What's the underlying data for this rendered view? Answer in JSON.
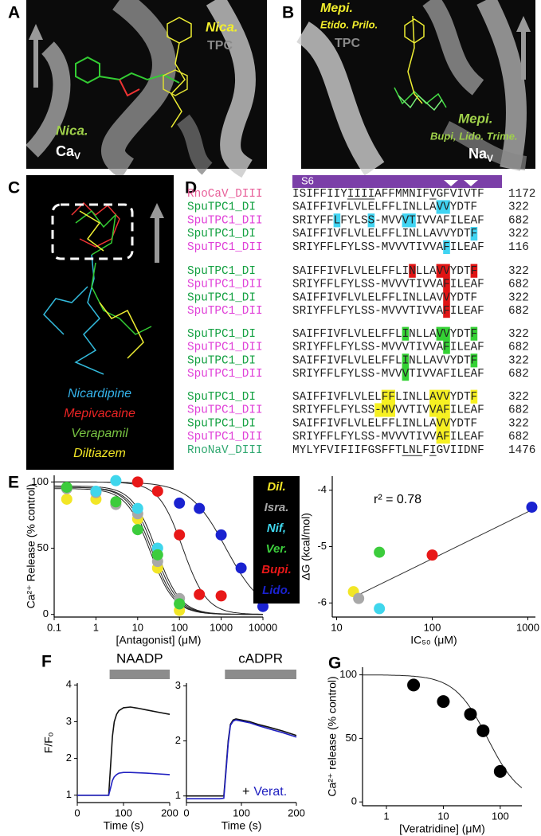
{
  "panel_labels": [
    "A",
    "B",
    "C",
    "D",
    "E",
    "F",
    "G"
  ],
  "panel_a": {
    "tpc_ligand": "Nica.",
    "tpc_label": "TPC",
    "channel_ligand": "Nica.",
    "channel": {
      "main": "Ca",
      "sub": "V"
    }
  },
  "panel_b": {
    "tpc_ligand": "Mepi.",
    "tpc_other_ligands": "Etido. Prilo.",
    "tpc_label": "TPC",
    "channel_ligand": "Mepi.",
    "channel_other_ligands": "Bupi, Lido. Trime.",
    "channel": {
      "main": "Na",
      "sub": "V"
    }
  },
  "panel_c": {
    "legend": [
      "Nicardipine",
      "Mepivacaine",
      "Verapamil",
      "Diltiazem"
    ]
  },
  "panel_d": {
    "segment_label": "S6",
    "blocks": [
      [
        {
          "name": "RnoCaV_DIII",
          "color": "#e8609a",
          "sequence": "ISIFFIIYIIIIAFFMMNIFVGFVIVTF",
          "position": 1172
        },
        {
          "name": "SpuTPC1_DI",
          "color": "#12a040",
          "sequence": "SAIFFIVFLVLELFFLINLLAVVYDTF",
          "position": 322
        },
        {
          "name": "SpuTPC1_DII",
          "color": "#e040d8",
          "sequence": "SRIYFFLFYLSS-MVVVTIVVAFILEAF",
          "position": 682
        },
        {
          "name": "SpuTPC1_DI",
          "color": "#12a040",
          "sequence": "SAIFFIVFLVLELFFLINLLAVVYDTF",
          "position": 322
        },
        {
          "name": "SpuTPC1_DII",
          "color": "#e040d8",
          "sequence": "SRIYFFLFYLSS-MVVVTIVVAFILEAF",
          "position": 116
        }
      ],
      [
        {
          "name": "SpuTPC1_DI",
          "color": "#12a040",
          "sequence": "SAIFFIVFLVLELFFLINLLAVVYDTF",
          "position": 322
        },
        {
          "name": "SpuTPC1_DII",
          "color": "#e040d8",
          "sequence": "SRIYFFLFYLSS-MVVVTIVVAFILEAF",
          "position": 682
        },
        {
          "name": "SpuTPC1_DI",
          "color": "#12a040",
          "sequence": "SAIFFIVFLVLELFFLINLLAVVYDTF",
          "position": 322
        },
        {
          "name": "SpuTPC1_DII",
          "color": "#e040d8",
          "sequence": "SRIYFFLFYLSS-MVVVTIVVAFILEAF",
          "position": 682
        }
      ],
      [
        {
          "name": "SpuTPC1_DI",
          "color": "#12a040",
          "sequence": "SAIFFIVFLVLELFFLINLLAVVYDTF",
          "position": 322
        },
        {
          "name": "SpuTPC1_DII",
          "color": "#e040d8",
          "sequence": "SRIYFFLFYLSS-MVVVTIVVAFILEAF",
          "position": 682
        },
        {
          "name": "SpuTPC1_DI",
          "color": "#12a040",
          "sequence": "SAIFFIVFLVLELFFLINLLAVVYDTF",
          "position": 322
        },
        {
          "name": "SpuTPC1_DII",
          "color": "#e040d8",
          "sequence": "SRIYFFLFYLSS-MVVVTIVVAFILEAF",
          "position": 682
        }
      ],
      [
        {
          "name": "SpuTPC1_DI",
          "color": "#12a040",
          "sequence": "SAIFFIVFLVLELFFLINLLAVVYDTF",
          "position": 322
        },
        {
          "name": "SpuTPC1_DII",
          "color": "#e040d8",
          "sequence": "SRIYFFLFYLSS-MVVVTIVVAFILEAF",
          "position": 682
        },
        {
          "name": "SpuTPC1_DI",
          "color": "#12a040",
          "sequence": "SAIFFIVFLVLELFFLINLLAVVYDTF",
          "position": 322
        },
        {
          "name": "SpuTPC1_DII",
          "color": "#e040d8",
          "sequence": "SRIYFFLFYLSS-MVVVTIVVAFILEAF",
          "position": 682
        },
        {
          "name": "RnoNaV_DIII",
          "color": "#30a870",
          "sequence": "MYLYFVIFIIFGSFFTLNLFIGVIIDNF",
          "position": 1476
        }
      ]
    ]
  },
  "chart_data": [
    {
      "type": "scatter",
      "xscale": "log",
      "xlabel": "[Antagonist] (μM)",
      "ylabel": "Ca²⁺ Release (% control)",
      "xlim": [
        0.1,
        10000
      ],
      "xticks": [
        0.1,
        1,
        10,
        100,
        1000,
        10000
      ],
      "ylim": [
        -2,
        105
      ],
      "yticks": [
        0,
        50,
        100
      ],
      "legend": "right",
      "series": [
        {
          "name": "Dil.",
          "color": "#f2e626",
          "x": [
            0.2,
            1,
            3,
            10,
            30,
            100
          ],
          "values": [
            87,
            87,
            84,
            72,
            35,
            3
          ],
          "fit": {
            "top": 95,
            "ic50": 20,
            "n": 1.5
          }
        },
        {
          "name": "Isra.",
          "color": "#a8a8a8",
          "x": [
            0.2,
            1,
            3,
            10,
            30,
            100
          ],
          "values": [
            95,
            92,
            83,
            76,
            40,
            12
          ],
          "fit": {
            "top": 96,
            "ic50": 22,
            "n": 1.5
          }
        },
        {
          "name": "Nif,",
          "color": "#3fd6ec",
          "x": [
            1,
            3,
            10,
            30,
            100
          ],
          "values": [
            93,
            101,
            80,
            50,
            8
          ],
          "fit": {
            "top": 97,
            "ic50": 28,
            "n": 1.5
          }
        },
        {
          "name": "Ver.",
          "color": "#3ccc3c",
          "x": [
            0.2,
            3,
            10,
            30,
            100
          ],
          "values": [
            96,
            85,
            64,
            45,
            8
          ],
          "fit": {
            "top": 96,
            "ic50": 25,
            "n": 1.5
          }
        },
        {
          "name": "Bupi.",
          "color": "#e81818",
          "x": [
            10,
            30,
            100,
            300,
            1000
          ],
          "values": [
            100,
            93,
            60,
            15,
            14
          ],
          "fit": {
            "top": 100,
            "ic50": 120,
            "n": 1.5
          }
        },
        {
          "name": "Lido.",
          "color": "#1a22d0",
          "x": [
            100,
            300,
            1000,
            3000,
            10000
          ],
          "values": [
            84,
            80,
            60,
            35,
            6
          ],
          "fit": {
            "top": 100,
            "ic50": 1300,
            "n": 1.0
          }
        }
      ]
    },
    {
      "type": "scatter",
      "xscale": "log",
      "xlabel": "IC₅₀ (μM)",
      "ylabel": "ΔG (kcal/mol)",
      "xlim": [
        9,
        1200
      ],
      "xticks": [
        10,
        100,
        1000
      ],
      "ylim": [
        -6.25,
        -3.75
      ],
      "yticks": [
        -4,
        -5,
        -6
      ],
      "annotation": "r² = 0.78",
      "series": [
        {
          "x": [
            15,
            17,
            28,
            28,
            100,
            1100
          ],
          "values": [
            -5.8,
            -5.92,
            -6.1,
            -5.1,
            -5.15,
            -4.3
          ],
          "colors": [
            "#f2e626",
            "#a8a8a8",
            "#3fd6ec",
            "#3ccc3c",
            "#e81818",
            "#1a22d0"
          ]
        }
      ],
      "trend": {
        "x": [
          15,
          1100
        ],
        "y": [
          -5.9,
          -4.35
        ],
        "color": "#333333"
      }
    },
    {
      "type": "line",
      "xlabel": "Time (s)",
      "ylabel": "F/Fₒ",
      "xlim": [
        0,
        200
      ],
      "xticks": [
        0,
        100,
        200
      ],
      "ylim": [
        0.8,
        4.05
      ],
      "yticks": [
        1,
        2,
        3,
        4
      ],
      "bar": {
        "label": "NAADP",
        "x": [
          70,
          200
        ],
        "color": "#8c8c8c"
      },
      "series": [
        {
          "color": "#111111",
          "x": [
            0,
            20,
            40,
            60,
            68,
            72,
            76,
            80,
            85,
            90,
            100,
            115,
            130,
            150,
            175,
            200
          ],
          "values": [
            1,
            1,
            1,
            1,
            1,
            1.8,
            2.6,
            3.0,
            3.2,
            3.3,
            3.38,
            3.4,
            3.37,
            3.32,
            3.26,
            3.2
          ]
        },
        {
          "color": "#2020c0",
          "x": [
            0,
            20,
            40,
            60,
            68,
            72,
            76,
            80,
            85,
            90,
            100,
            115,
            130,
            150,
            175,
            200
          ],
          "values": [
            1,
            1,
            1,
            1,
            1,
            1.2,
            1.4,
            1.5,
            1.56,
            1.6,
            1.62,
            1.62,
            1.61,
            1.6,
            1.58,
            1.56
          ]
        }
      ]
    },
    {
      "type": "line",
      "xlabel": "Time (s)",
      "xlim": [
        0,
        200
      ],
      "xticks": [
        0,
        100,
        200
      ],
      "ylim": [
        0.88,
        3.05
      ],
      "yticks": [
        1,
        2,
        3
      ],
      "bar": {
        "label": "cADPR",
        "x": [
          70,
          200
        ],
        "color": "#8c8c8c"
      },
      "annotation": {
        "prefix": "+",
        "text": "Verat.",
        "color": "#2020c0"
      },
      "series": [
        {
          "color": "#111111",
          "x": [
            0,
            20,
            40,
            60,
            68,
            72,
            76,
            80,
            85,
            90,
            100,
            115,
            130,
            150,
            175,
            200
          ],
          "values": [
            1,
            1,
            1,
            1,
            1,
            1.5,
            2.0,
            2.3,
            2.38,
            2.4,
            2.38,
            2.35,
            2.3,
            2.25,
            2.18,
            2.1
          ]
        },
        {
          "color": "#2020c0",
          "x": [
            0,
            20,
            40,
            60,
            68,
            72,
            76,
            80,
            85,
            90,
            100,
            115,
            130,
            150,
            175,
            200
          ],
          "values": [
            0.95,
            0.95,
            0.95,
            0.95,
            0.96,
            1.45,
            1.95,
            2.28,
            2.36,
            2.38,
            2.36,
            2.33,
            2.28,
            2.22,
            2.15,
            2.07
          ]
        }
      ]
    },
    {
      "type": "scatter",
      "xscale": "log",
      "xlabel": "[Veratridine] (μM)",
      "ylabel": "Ca²⁺ release (% control)",
      "xlim": [
        0.38,
        240
      ],
      "xticks": [
        1,
        10,
        100
      ],
      "ylim": [
        -3,
        106
      ],
      "yticks": [
        0,
        50,
        100
      ],
      "series": [
        {
          "color": "#000000",
          "x": [
            3,
            10,
            30,
            50,
            100
          ],
          "values": [
            92,
            79,
            69,
            56,
            24
          ],
          "fit": {
            "top": 100,
            "ic50": 60,
            "n": 1.5
          }
        }
      ]
    }
  ]
}
